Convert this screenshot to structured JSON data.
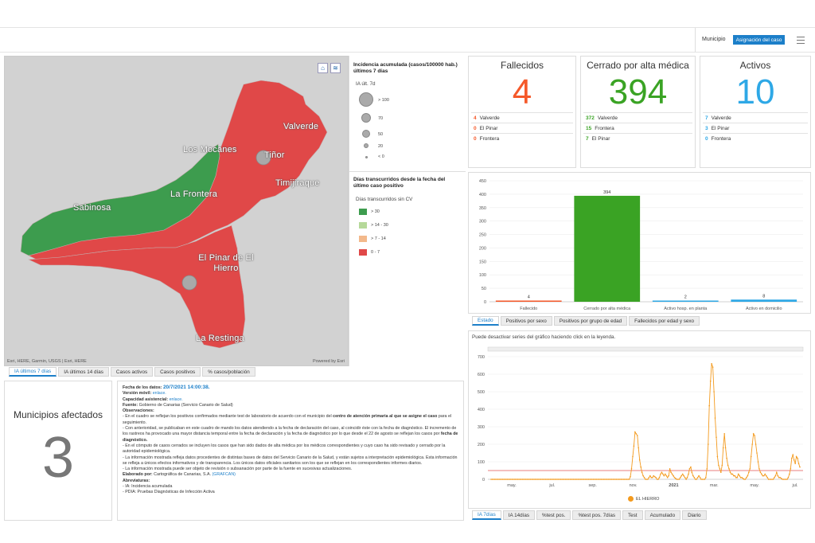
{
  "header": {
    "filter_label": "Municipio",
    "assign_button": "Asignación del caso"
  },
  "map": {
    "labels": {
      "valverde": "Valverde",
      "los_mocanes": "Los Mocanes",
      "tinor": "Tiñor",
      "la_frontera": "La Frontera",
      "timijiraque": "Timijiraque",
      "sabinosa": "Sabinosa",
      "el_pinar": "El Pinar de El Hierro",
      "la_restinga": "La Restinga"
    },
    "attribution": "Esri, HERE, Garmin, USGS | Esri, HERE",
    "powered": "Powered by Esri",
    "home_icon": "home-icon",
    "layers_icon": "layers-icon"
  },
  "legend": {
    "title1": "Incidencia acumulada (casos/100000 hab.) últimos 7 días",
    "sub1": "IA últ. 7d",
    "sizes": [
      {
        "label": "> 100"
      },
      {
        "label": "70"
      },
      {
        "label": "50"
      },
      {
        "label": "20"
      },
      {
        "label": "< 0"
      }
    ],
    "title2": "Días transcurridos desde la fecha del último caso positivo",
    "sub2": "Días transcurridos sin CV",
    "classes": [
      {
        "label": "> 30",
        "color": "#3d9c4e"
      },
      {
        "label": "> 14 - 30",
        "color": "#b6d99a"
      },
      {
        "label": "> 7 - 14",
        "color": "#f3b98b"
      },
      {
        "label": "0 - 7",
        "color": "#e04848"
      }
    ]
  },
  "map_tabs": [
    "IA últimos 7 días",
    "IA últimos 14 días",
    "Casos activos",
    "Casos positivos",
    "% casos/población"
  ],
  "kpis": {
    "fallecidos": {
      "title": "Fallecidos",
      "value": "4",
      "color": "#f5592a",
      "rows": [
        {
          "n": "4",
          "name": "Valverde"
        },
        {
          "n": "0",
          "name": "El Pinar"
        },
        {
          "n": "0",
          "name": "Frontera"
        }
      ]
    },
    "cerrado": {
      "title": "Cerrado por alta médica",
      "value": "394",
      "color": "#3aa324",
      "rows": [
        {
          "n": "372",
          "name": "Valverde"
        },
        {
          "n": "15",
          "name": "Frontera"
        },
        {
          "n": "7",
          "name": "El Pinar"
        }
      ]
    },
    "activos": {
      "title": "Activos",
      "value": "10",
      "color": "#2ea8e6",
      "rows": [
        {
          "n": "7",
          "name": "Valverde"
        },
        {
          "n": "3",
          "name": "El Pinar"
        },
        {
          "n": "0",
          "name": "Frontera"
        }
      ]
    }
  },
  "municipios": {
    "title": "Municipios afectados",
    "value": "3"
  },
  "info": {
    "fecha_label": "Fecha de los datos:",
    "fecha_value": "20/7/2021 14:00:38.",
    "movil_label": "Versión móvil:",
    "movil_link": "enlace.",
    "capacidad_label": "Capacidad asistencial:",
    "capacidad_link": "enlace.",
    "fuente_label": "Fuente:",
    "fuente_value": "Gobierno de Canarias (Servicio Canario de Salud)",
    "obs_label": "Observaciones:",
    "obs1a": "- En el cuadro se reflejan los positivos confirmados mediante test de laboratorio de acuerdo con el municipio del",
    "obs1b": "centro de atención primaria al que se asigne el caso",
    "obs1c": "para el seguimiento.",
    "obs2": "- Con anterioridad, se publicaban en este cuadro de mando los datos atendiendo a la fecha de declaración del caso, al coincidir éste con la fecha de diagnóstico. El incremento de los rastreos ha provocado una mayor distancia temporal entre la fecha de declaración y la fecha de diagnóstico por lo que desde el 22 de agosto se reflejan los casos por",
    "obs2b": "fecha de diagnóstico.",
    "obs3": "- En el cómputo de casos cerrados se incluyen los casos que han sido dados de alta médica por los médicos correspondientes y cuyo caso ha sido revisado y cerrado por la autoridad epidemiológica.",
    "obs4": "- La información mostrada refleja datos procedentes de distintas bases de datos del Servicio Canario de la Salud, y están sujetos a interpretación epidemiológica. Esta información se refleja a únicos efectos informativos y de transparencia. Los únicos datos oficiales sanitarios son los que se reflejan en los correspondientes informes diarios.",
    "obs5": "- La información mostrada puede ser objeto de revisión o subsanación por parte de la fuente en sucesivas actualizaciones.",
    "elab_label": "Elaborado por:",
    "elab_value": "Cartográfica de Canarias, S.A.",
    "elab_link": "(GRAFCAN)",
    "abrev_label": "Abreviaturas:",
    "abrev1": "- IA: Incidencia acumulada",
    "abrev2": "- PDIA: Pruebas Diagnósticas de Infección Activa"
  },
  "bar_chart": {
    "type": "bar",
    "categories": [
      "Fallecido",
      "Cerrado por alta médica",
      "Activo hosp. en planta",
      "Activo en domicilio"
    ],
    "values": [
      4,
      394,
      2,
      8
    ],
    "colors": [
      "#f5592a",
      "#3aa324",
      "#2ea8e6",
      "#2ea8e6"
    ],
    "yticks": [
      0,
      50,
      100,
      150,
      200,
      250,
      300,
      350,
      400,
      450
    ],
    "ylim": [
      0,
      450
    ]
  },
  "bar_tabs": [
    "Estado",
    "Positivos por sexo",
    "Positivos por grupo de edad",
    "Fallecidos por edad y sexo"
  ],
  "line_chart": {
    "type": "line",
    "note": "Puede desactivar series del gráfico haciendo click en la leyenda.",
    "series_name": "EL HIERRO",
    "color": "#f39a1e",
    "threshold": 50,
    "ylim": [
      0,
      700
    ],
    "yticks": [
      0,
      100,
      200,
      300,
      400,
      500,
      600,
      700
    ],
    "xticks": [
      "may.",
      "jul.",
      "sep.",
      "nov.",
      "2021",
      "mar.",
      "may.",
      "jul."
    ],
    "values": [
      0,
      0,
      0,
      0,
      0,
      0,
      0,
      0,
      0,
      0,
      0,
      0,
      0,
      0,
      0,
      0,
      0,
      0,
      0,
      0,
      0,
      0,
      0,
      0,
      0,
      0,
      0,
      0,
      0,
      0,
      0,
      0,
      0,
      0,
      0,
      0,
      0,
      0,
      0,
      0,
      0,
      0,
      0,
      0,
      0,
      0,
      0,
      0,
      0,
      0,
      0,
      0,
      0,
      0,
      0,
      0,
      0,
      0,
      0,
      0,
      0,
      0,
      0,
      0,
      0,
      0,
      0,
      0,
      0,
      0,
      0,
      0,
      0,
      0,
      0,
      0,
      0,
      0,
      0,
      0,
      0,
      0,
      0,
      0,
      0,
      0,
      0,
      0,
      0,
      0,
      0,
      0,
      0,
      0,
      0,
      0,
      0,
      0,
      0,
      0,
      0,
      0,
      0,
      0,
      0,
      0,
      0,
      0,
      0,
      0,
      0,
      0,
      0,
      0,
      0,
      0,
      0,
      0,
      0,
      0,
      15,
      60,
      130,
      190,
      270,
      260,
      250,
      180,
      110,
      70,
      40,
      20,
      10,
      0,
      0,
      0,
      10,
      20,
      10,
      10,
      20,
      15,
      10,
      0,
      0,
      10,
      30,
      40,
      30,
      20,
      30,
      20,
      10,
      20,
      60,
      40,
      30,
      20,
      10,
      5,
      0,
      0,
      0,
      10,
      20,
      30,
      20,
      10,
      0,
      10,
      30,
      60,
      70,
      40,
      20,
      10,
      0,
      0,
      10,
      20,
      10,
      0,
      0,
      0,
      0,
      10,
      60,
      200,
      420,
      560,
      660,
      640,
      500,
      350,
      240,
      130,
      80,
      60,
      40,
      80,
      180,
      260,
      180,
      120,
      80,
      60,
      40,
      30,
      30,
      20,
      20,
      10,
      10,
      30,
      20,
      10,
      10,
      5,
      0,
      0,
      10,
      20,
      40,
      60,
      130,
      200,
      260,
      250,
      200,
      150,
      100,
      60,
      40,
      30,
      20,
      20,
      30,
      20,
      10,
      0,
      0,
      0,
      0,
      0,
      10,
      20,
      40,
      20,
      10,
      10,
      5,
      0,
      0,
      0,
      0,
      0,
      10,
      30,
      60,
      120,
      140,
      110,
      90,
      130,
      120,
      90,
      70
    ]
  },
  "line_tabs": [
    "IA 7días",
    "IA 14días",
    "%test pos.",
    "%test pos. 7días",
    "Test",
    "Acumulado",
    "Diario"
  ]
}
